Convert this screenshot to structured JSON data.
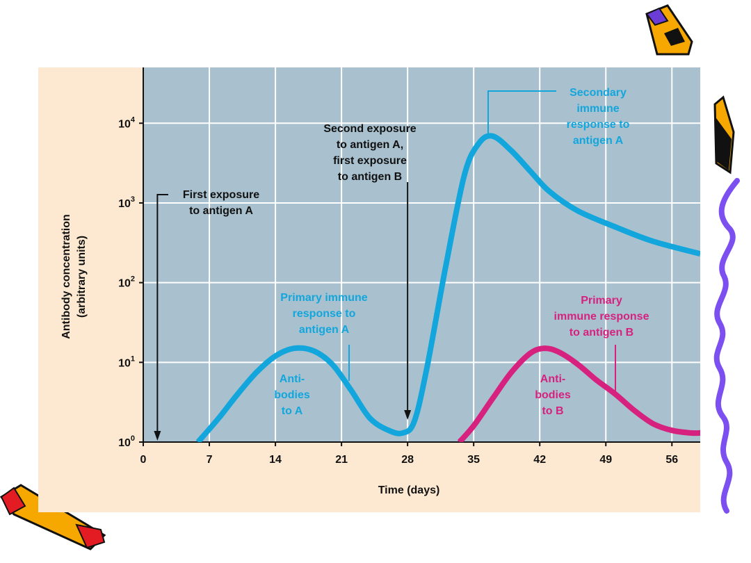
{
  "chart_data": {
    "type": "line",
    "xlabel": "Time (days)",
    "ylabel_line1": "Antibody concentration",
    "ylabel_line2": "(arbitrary units)",
    "xlim": [
      0,
      59
    ],
    "ylim_log10": [
      0,
      4.7
    ],
    "log_scale_y": true,
    "grid": true,
    "x_ticks": [
      0,
      7,
      14,
      21,
      28,
      35,
      42,
      49,
      56
    ],
    "y_ticks": [
      {
        "exp": 0,
        "base": "10",
        "sup": "0"
      },
      {
        "exp": 1,
        "base": "10",
        "sup": "1"
      },
      {
        "exp": 2,
        "base": "10",
        "sup": "2"
      },
      {
        "exp": 3,
        "base": "10",
        "sup": "3"
      },
      {
        "exp": 4,
        "base": "10",
        "sup": "4"
      }
    ],
    "series": [
      {
        "name": "Antibodies to A",
        "color": "#12a6dc",
        "x": [
          5.8,
          8,
          10,
          12,
          14,
          16,
          18,
          20,
          22,
          24,
          26,
          27.5,
          28.7,
          30,
          32,
          34,
          35.5,
          37,
          39,
          41,
          43,
          46,
          50,
          54,
          59
        ],
        "y": [
          1.0,
          2.0,
          4.0,
          7.5,
          12,
          15,
          14,
          9.5,
          4.5,
          2.0,
          1.4,
          1.3,
          1.8,
          8,
          150,
          2200,
          5500,
          6900,
          4500,
          2500,
          1400,
          800,
          500,
          330,
          230
        ]
      },
      {
        "name": "Antibodies to B",
        "color": "#d6217f",
        "x": [
          33.5,
          35,
          37,
          39,
          41,
          42.5,
          44,
          46,
          48,
          50,
          52,
          54,
          56,
          58,
          59
        ],
        "y": [
          1.0,
          1.6,
          3.5,
          7.5,
          13,
          15,
          13.5,
          9.5,
          6,
          4,
          2.5,
          1.7,
          1.4,
          1.3,
          1.3
        ]
      }
    ],
    "annotations": [
      {
        "id": "first-exposure-label",
        "lines": [
          "First exposure",
          "to antigen A"
        ],
        "x_day": 1.5
      },
      {
        "id": "second-exposure-label",
        "lines": [
          "Second exposure",
          "to antigen A,",
          "first exposure",
          "to antigen B"
        ],
        "x_day": 28
      },
      {
        "id": "secondary-response-label",
        "lines": [
          "Secondary",
          "immune",
          "response to",
          "antigen A"
        ]
      },
      {
        "id": "primary-response-a-label",
        "lines": [
          "Primary immune",
          "response to",
          "antigen A"
        ]
      },
      {
        "id": "antibodies-a-label",
        "lines": [
          "Anti-",
          "bodies",
          "to A"
        ]
      },
      {
        "id": "primary-response-b-label",
        "lines": [
          "Primary",
          "immune response",
          "to antigen B"
        ]
      },
      {
        "id": "antibodies-b-label",
        "lines": [
          "Anti-",
          "bodies",
          "to B"
        ]
      }
    ]
  },
  "colors": {
    "panel_bg": "#fde9d1",
    "plot_bg": "#a9c1cf",
    "grid": "#ffffff",
    "series_a": "#12a6dc",
    "series_b": "#d6217f",
    "text": "#111111",
    "squiggle": "#7c4ff0"
  },
  "decorations": [
    "pencil-clipart-top-right",
    "pencil-clipart-right",
    "pencil-clipart-bottom-left",
    "squiggle-line-right"
  ]
}
